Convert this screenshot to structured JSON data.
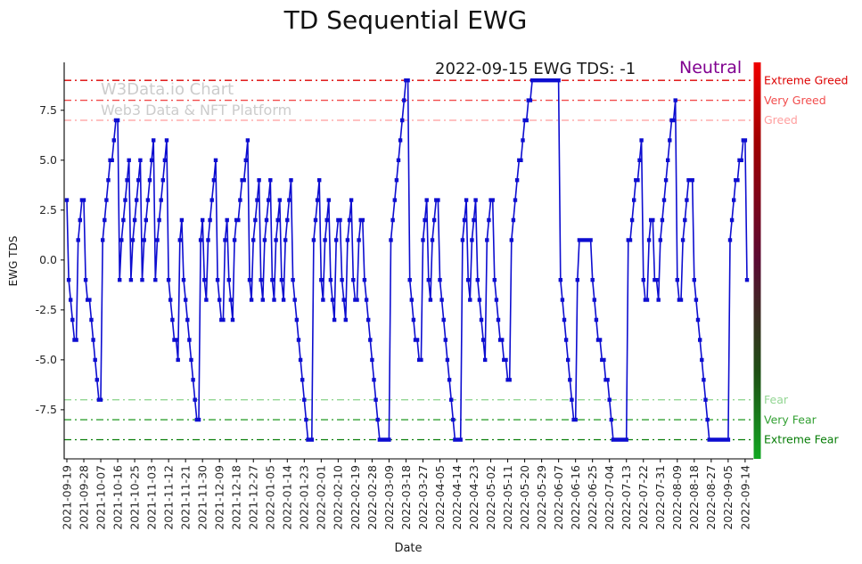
{
  "title": "TD Sequential EWG",
  "watermark": {
    "line1": "W3Data.io Chart",
    "line2": "Web3 Data & NFT Platform"
  },
  "annotation": {
    "text": "2022-09-15 EWG TDS: -1",
    "status": "Neutral",
    "status_color": "#800090"
  },
  "axes": {
    "x_label": "Date",
    "y_label": "EWG TDS"
  },
  "chart_data": {
    "type": "line",
    "marker": "square",
    "line_color": "#0d0dd0",
    "start_date": "2021-09-19",
    "end_date": "2022-09-15",
    "x_tick_interval_days": 9,
    "x_tick_labels": [
      "2021-09-19",
      "2021-09-28",
      "2021-10-07",
      "2021-10-16",
      "2021-10-25",
      "2021-11-03",
      "2021-11-12",
      "2021-11-21",
      "2021-11-30",
      "2021-12-09",
      "2021-12-18",
      "2021-12-27",
      "2022-01-05",
      "2022-01-14",
      "2022-01-23",
      "2022-02-01",
      "2022-02-10",
      "2022-02-19",
      "2022-02-28",
      "2022-03-09",
      "2022-03-18",
      "2022-03-27",
      "2022-04-05",
      "2022-04-14",
      "2022-04-23",
      "2022-05-02",
      "2022-05-11",
      "2022-05-20",
      "2022-05-29",
      "2022-06-07",
      "2022-06-16",
      "2022-06-25",
      "2022-07-04",
      "2022-07-13",
      "2022-07-22",
      "2022-07-31",
      "2022-08-09",
      "2022-08-18",
      "2022-08-27",
      "2022-09-05",
      "2022-09-14"
    ],
    "y_ticks": [
      "7.5",
      "5.0",
      "2.5",
      "0.0",
      "-2.5",
      "-5.0",
      "-7.5"
    ],
    "ylim": [
      -9.96,
      9.9
    ],
    "values": [
      3,
      -1,
      -2,
      -3,
      -4,
      -4,
      1,
      2,
      3,
      3,
      -1,
      -2,
      -2,
      -3,
      -4,
      -5,
      -6,
      -7,
      -7,
      1,
      2,
      3,
      4,
      5,
      5,
      6,
      7,
      7,
      -1,
      1,
      2,
      3,
      4,
      5,
      -1,
      1,
      2,
      3,
      4,
      5,
      -1,
      1,
      2,
      3,
      4,
      5,
      6,
      -1,
      1,
      2,
      3,
      4,
      5,
      6,
      -1,
      -2,
      -3,
      -4,
      -4,
      -5,
      1,
      2,
      -1,
      -2,
      -3,
      -4,
      -5,
      -6,
      -7,
      -8,
      -8,
      1,
      2,
      -1,
      -2,
      1,
      2,
      3,
      4,
      5,
      -1,
      -2,
      -3,
      -3,
      1,
      2,
      -1,
      -2,
      -3,
      1,
      2,
      2,
      3,
      4,
      4,
      5,
      6,
      -1,
      -2,
      1,
      2,
      3,
      4,
      -1,
      -2,
      1,
      2,
      3,
      4,
      -1,
      -2,
      1,
      2,
      3,
      -1,
      -2,
      1,
      2,
      3,
      4,
      -1,
      -2,
      -3,
      -4,
      -5,
      -6,
      -7,
      -8,
      -9,
      -9,
      -9,
      1,
      2,
      3,
      4,
      -1,
      -2,
      1,
      2,
      3,
      -1,
      -2,
      -3,
      1,
      2,
      2,
      -1,
      -2,
      -3,
      1,
      2,
      3,
      -1,
      -2,
      -2,
      1,
      2,
      2,
      -1,
      -2,
      -3,
      -4,
      -5,
      -6,
      -7,
      -8,
      -9,
      -9,
      -9,
      -9,
      -9,
      -9,
      1,
      2,
      3,
      4,
      5,
      6,
      7,
      8,
      9,
      9,
      -1,
      -2,
      -3,
      -4,
      -4,
      -5,
      -5,
      1,
      2,
      3,
      -1,
      -2,
      1,
      2,
      3,
      3,
      -1,
      -2,
      -3,
      -4,
      -5,
      -6,
      -7,
      -8,
      -9,
      -9,
      -9,
      -9,
      1,
      2,
      3,
      -1,
      -2,
      1,
      2,
      3,
      -1,
      -2,
      -3,
      -4,
      -5,
      1,
      2,
      3,
      3,
      -1,
      -2,
      -3,
      -4,
      -4,
      -5,
      -5,
      -6,
      -6,
      1,
      2,
      3,
      4,
      5,
      5,
      6,
      7,
      7,
      8,
      8,
      9,
      9,
      9,
      9,
      9,
      9,
      9,
      9,
      9,
      9,
      9,
      9,
      9,
      9,
      9,
      -1,
      -2,
      -3,
      -4,
      -5,
      -6,
      -7,
      -8,
      -8,
      -1,
      1,
      1,
      1,
      1,
      1,
      1,
      1,
      -1,
      -2,
      -3,
      -4,
      -4,
      -5,
      -5,
      -6,
      -6,
      -7,
      -8,
      -9,
      -9,
      -9,
      -9,
      -9,
      -9,
      -9,
      -9,
      1,
      1,
      2,
      3,
      4,
      4,
      5,
      6,
      -1,
      -2,
      -2,
      1,
      2,
      2,
      -1,
      -1,
      -2,
      1,
      2,
      3,
      4,
      5,
      6,
      7,
      7,
      8,
      -1,
      -2,
      -2,
      1,
      2,
      3,
      4,
      4,
      4,
      -1,
      -2,
      -3,
      -4,
      -5,
      -6,
      -7,
      -8,
      -9,
      -9,
      -9,
      -9,
      -9,
      -9,
      -9,
      -9,
      -9,
      -9,
      -9,
      1,
      2,
      3,
      4,
      4,
      5,
      5,
      6,
      6,
      -1
    ],
    "thresholds": [
      {
        "value": 9,
        "label": "Extreme Greed",
        "color": "#dd0000"
      },
      {
        "value": 8,
        "label": "Very Greed",
        "color": "#f24d4d"
      },
      {
        "value": 7,
        "label": "Greed",
        "color": "#ff9e9e"
      },
      {
        "value": -7,
        "label": "Fear",
        "color": "#93d693"
      },
      {
        "value": -8,
        "label": "Very Fear",
        "color": "#33a033"
      },
      {
        "value": -9,
        "label": "Extreme Fear",
        "color": "#067d06"
      }
    ],
    "gauge_gradient": [
      {
        "offset": 0,
        "color": "#f00000"
      },
      {
        "offset": 0.2,
        "color": "#a00000"
      },
      {
        "offset": 0.5,
        "color": "#5a0a32"
      },
      {
        "offset": 0.78,
        "color": "#1e4e14"
      },
      {
        "offset": 1,
        "color": "#12a822"
      }
    ]
  }
}
